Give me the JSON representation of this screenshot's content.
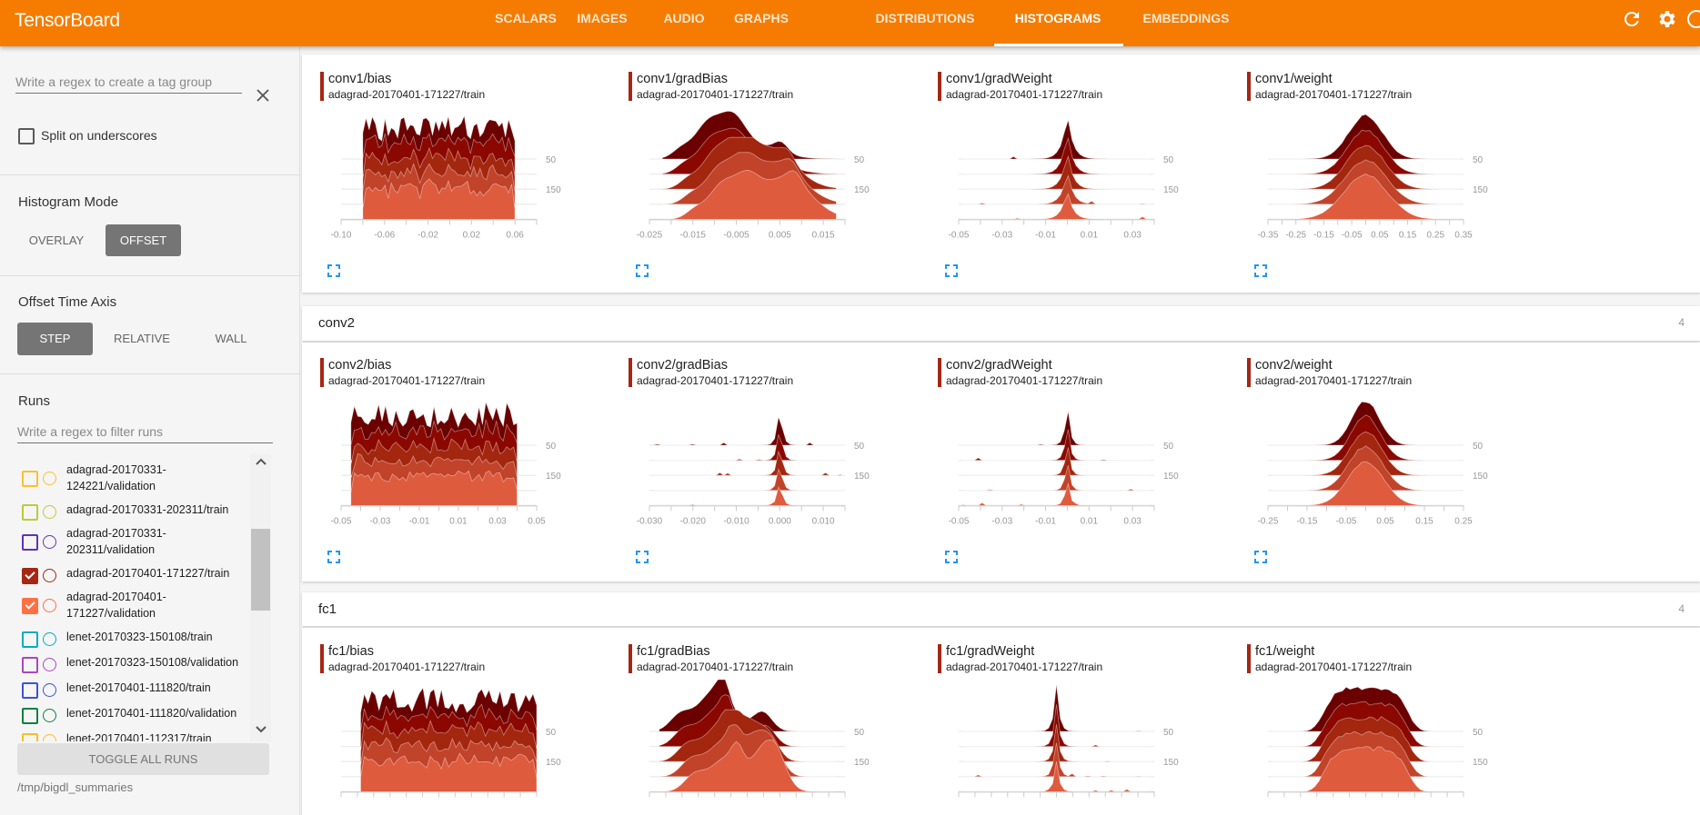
{
  "app": {
    "title": "TensorBoard",
    "accent_color": "#f57c00",
    "tabs": [
      {
        "label": "SCALARS",
        "active": false
      },
      {
        "label": "IMAGES",
        "active": false
      },
      {
        "label": "AUDIO",
        "active": false
      },
      {
        "label": "GRAPHS",
        "active": false
      },
      {
        "label": "DISTRIBUTIONS",
        "active": false
      },
      {
        "label": "HISTOGRAMS",
        "active": true
      },
      {
        "label": "EMBEDDINGS",
        "active": false
      }
    ],
    "header_icons": [
      "refresh-icon",
      "settings-gear-icon",
      "help-icon"
    ]
  },
  "sidebar": {
    "tag_group_placeholder": "Write a regex to create a tag group",
    "split_on_underscores": {
      "label": "Split on underscores",
      "checked": false
    },
    "histogram_mode": {
      "title": "Histogram Mode",
      "options": [
        "OVERLAY",
        "OFFSET"
      ],
      "selected": "OFFSET"
    },
    "offset_time_axis": {
      "title": "Offset Time Axis",
      "options": [
        "STEP",
        "RELATIVE",
        "WALL"
      ],
      "selected": "STEP"
    },
    "runs": {
      "title": "Runs",
      "filter_placeholder": "Write a regex to filter runs",
      "items": [
        {
          "label": "adagrad-20170331-124221/validation",
          "color": "#fbc02d",
          "checked": false
        },
        {
          "label": "adagrad-20170331-202311/train",
          "color": "#c0ca33",
          "checked": false
        },
        {
          "label": "adagrad-20170331-202311/validation",
          "color": "#5e35b1",
          "checked": false
        },
        {
          "label": "adagrad-20170401-171227/train",
          "color": "#a52714",
          "checked": true
        },
        {
          "label": "adagrad-20170401-171227/validation",
          "color": "#ff7043",
          "checked": true
        },
        {
          "label": "lenet-20170323-150108/train",
          "color": "#00acc1",
          "checked": false
        },
        {
          "label": "lenet-20170323-150108/validation",
          "color": "#ab47bc",
          "checked": false
        },
        {
          "label": "lenet-20170401-111820/train",
          "color": "#3f51d6",
          "checked": false
        },
        {
          "label": "lenet-20170401-111820/validation",
          "color": "#0b8043",
          "checked": false
        },
        {
          "label": "lenet-20170401-112317/train",
          "color": "#f6bf26",
          "checked": false
        }
      ],
      "toggle_all_label": "TOGGLE ALL RUNS",
      "logdir": "/tmp/bigdl_summaries"
    }
  },
  "groups": [
    {
      "name": "conv2",
      "count": "4"
    },
    {
      "name": "fc1",
      "count": "4"
    }
  ],
  "chart_data": [
    {
      "type": "area",
      "mode": "offset",
      "title": "conv1/bias",
      "run": "adagrad-20170401-171227/train",
      "xlim": [
        -0.1,
        0.08
      ],
      "xticks": [
        "-0.10",
        "-0.06",
        "-0.02",
        "0.02",
        "0.06"
      ],
      "step_labels": [
        "50",
        "150"
      ],
      "distribution": {
        "shape": "noisy",
        "range": [
          -0.08,
          0.06
        ]
      }
    },
    {
      "type": "area",
      "mode": "offset",
      "title": "conv1/gradBias",
      "run": "adagrad-20170401-171227/train",
      "xlim": [
        -0.025,
        0.02
      ],
      "xticks": [
        "-0.025",
        "-0.015",
        "-0.005",
        "0.005",
        "0.015"
      ],
      "step_labels": [
        "50",
        "150"
      ],
      "distribution": {
        "shape": "multimodal",
        "center": 0.0,
        "spread": 0.006,
        "range": [
          -0.022,
          0.018
        ]
      }
    },
    {
      "type": "area",
      "mode": "offset",
      "title": "conv1/gradWeight",
      "run": "adagrad-20170401-171227/train",
      "xlim": [
        -0.05,
        0.04
      ],
      "xticks": [
        "-0.05",
        "-0.03",
        "-0.01",
        "0.01",
        "0.03"
      ],
      "step_labels": [
        "50",
        "150"
      ],
      "distribution": {
        "shape": "spike",
        "center": 0.0,
        "spread": 0.0025
      }
    },
    {
      "type": "area",
      "mode": "offset",
      "title": "conv1/weight",
      "run": "adagrad-20170401-171227/train",
      "xlim": [
        -0.35,
        0.35
      ],
      "xticks": [
        "-0.35",
        "-0.25",
        "-0.15",
        "-0.05",
        "0.05",
        "0.15",
        "0.25",
        "0.35"
      ],
      "step_labels": [
        "50",
        "150"
      ],
      "distribution": {
        "shape": "gaussian",
        "center": 0.0,
        "spread": 0.06
      }
    },
    {
      "type": "area",
      "mode": "offset",
      "title": "conv2/bias",
      "run": "adagrad-20170401-171227/train",
      "xlim": [
        -0.05,
        0.05
      ],
      "xticks": [
        "-0.05",
        "-0.03",
        "-0.01",
        "0.01",
        "0.03",
        "0.05"
      ],
      "step_labels": [
        "50",
        "150"
      ],
      "distribution": {
        "shape": "noisy",
        "range": [
          -0.045,
          0.04
        ]
      }
    },
    {
      "type": "area",
      "mode": "offset",
      "title": "conv2/gradBias",
      "run": "adagrad-20170401-171227/train",
      "xlim": [
        -0.03,
        0.015
      ],
      "xticks": [
        "-0.030",
        "-0.020",
        "-0.010",
        "0.000",
        "0.010"
      ],
      "step_labels": [
        "50",
        "150"
      ],
      "distribution": {
        "shape": "spike",
        "center": 0.0,
        "spread": 0.0006
      }
    },
    {
      "type": "area",
      "mode": "offset",
      "title": "conv2/gradWeight",
      "run": "adagrad-20170401-171227/train",
      "xlim": [
        -0.05,
        0.04
      ],
      "xticks": [
        "-0.05",
        "-0.03",
        "-0.01",
        "0.01",
        "0.03"
      ],
      "step_labels": [
        "50",
        "150"
      ],
      "distribution": {
        "shape": "spike",
        "center": 0.0,
        "spread": 0.0012
      }
    },
    {
      "type": "area",
      "mode": "offset",
      "title": "conv2/weight",
      "run": "adagrad-20170401-171227/train",
      "xlim": [
        -0.25,
        0.25
      ],
      "xticks": [
        "-0.25",
        "-0.15",
        "-0.05",
        "0.05",
        "0.15",
        "0.25"
      ],
      "step_labels": [
        "50",
        "150"
      ],
      "distribution": {
        "shape": "gaussian",
        "center": 0.0,
        "spread": 0.035
      }
    },
    {
      "type": "area",
      "mode": "offset",
      "title": "fc1/bias",
      "run": "adagrad-20170401-171227/train",
      "xlim": [
        -1,
        1
      ],
      "xticks": [],
      "step_labels": [
        "50",
        "150"
      ],
      "distribution": {
        "shape": "noisy",
        "range": [
          -0.8,
          1.0
        ]
      }
    },
    {
      "type": "area",
      "mode": "offset",
      "title": "fc1/gradBias",
      "run": "adagrad-20170401-171227/train",
      "xlim": [
        -1,
        1
      ],
      "xticks": [],
      "step_labels": [
        "50",
        "150"
      ],
      "distribution": {
        "shape": "multimodal",
        "center": -0.1,
        "spread": 0.15,
        "range": [
          -0.9,
          0.9
        ]
      }
    },
    {
      "type": "area",
      "mode": "offset",
      "title": "fc1/gradWeight",
      "run": "adagrad-20170401-171227/train",
      "xlim": [
        -1,
        1
      ],
      "xticks": [],
      "step_labels": [
        "50",
        "150"
      ],
      "distribution": {
        "shape": "spike",
        "center": 0.0,
        "spread": 0.03
      }
    },
    {
      "type": "area",
      "mode": "offset",
      "title": "fc1/weight",
      "run": "adagrad-20170401-171227/train",
      "xlim": [
        -1,
        1
      ],
      "xticks": [],
      "step_labels": [
        "50",
        "150"
      ],
      "distribution": {
        "shape": "flat",
        "center": 0.0,
        "spread": 0.45
      }
    }
  ],
  "ridge_colors": [
    "#6a0000",
    "#8b0800",
    "#a3260f",
    "#c1432a",
    "#de5b3e"
  ],
  "expand_icon_color": "#2196f3"
}
